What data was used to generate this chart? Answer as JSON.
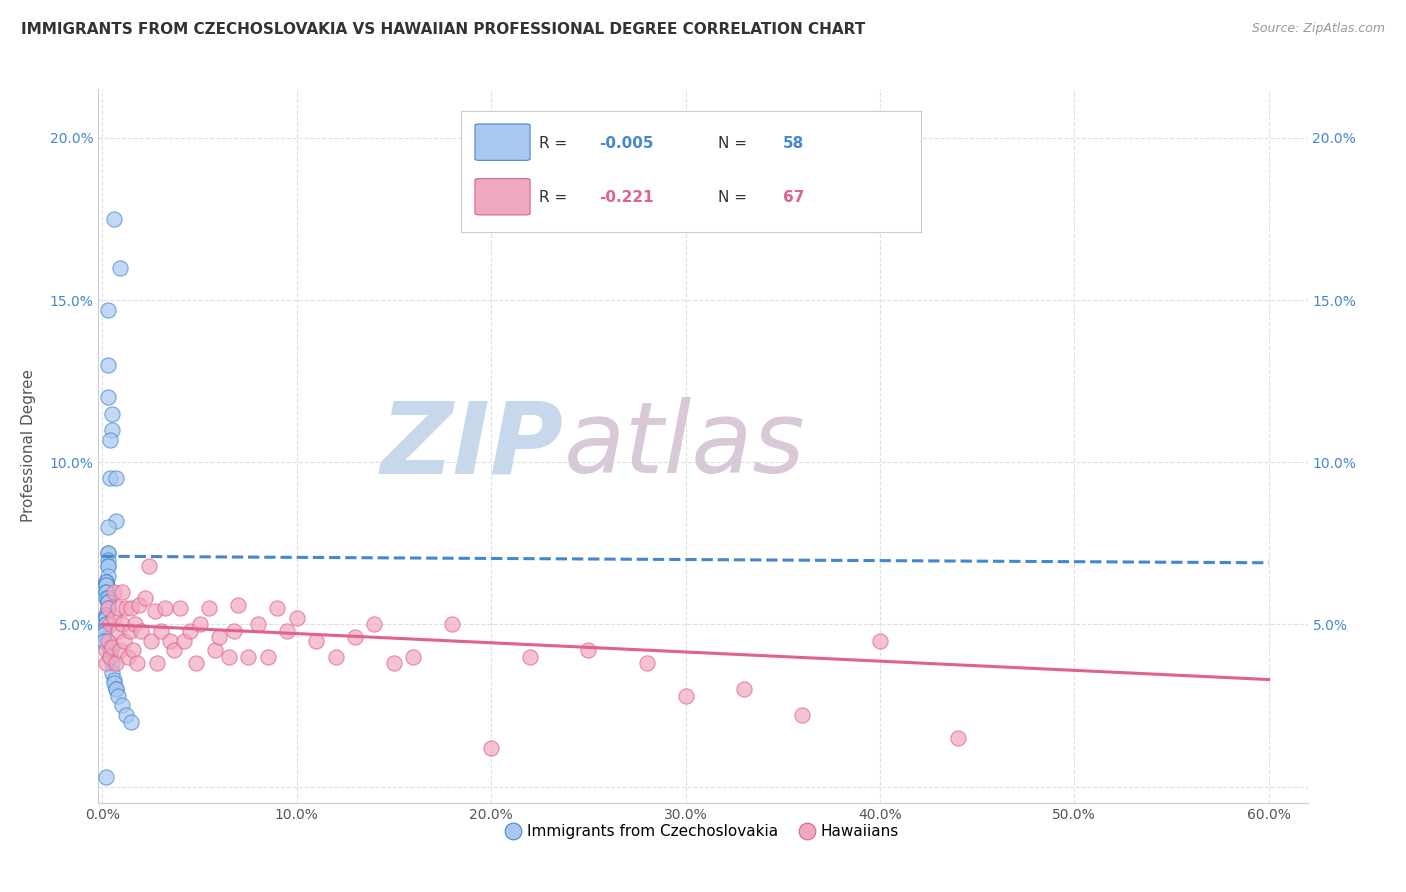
{
  "title": "IMMIGRANTS FROM CZECHOSLOVAKIA VS HAWAIIAN PROFESSIONAL DEGREE CORRELATION CHART",
  "source": "Source: ZipAtlas.com",
  "ylabel_label": "Professional Degree",
  "xlim": [
    -0.002,
    0.62
  ],
  "ylim": [
    -0.005,
    0.215
  ],
  "xticks": [
    0.0,
    0.1,
    0.2,
    0.3,
    0.4,
    0.5,
    0.6
  ],
  "xticklabels": [
    "0.0%",
    "10.0%",
    "20.0%",
    "30.0%",
    "40.0%",
    "50.0%",
    "60.0%"
  ],
  "yticks": [
    0.0,
    0.05,
    0.1,
    0.15,
    0.2
  ],
  "yticklabels_left": [
    "",
    "5.0%",
    "10.0%",
    "15.0%",
    "20.0%"
  ],
  "yticklabels_right": [
    "",
    "5.0%",
    "10.0%",
    "15.0%",
    "20.0%"
  ],
  "legend_R1": "-0.005",
  "legend_N1": "58",
  "legend_R2": "-0.221",
  "legend_N2": "67",
  "color_blue": "#a8c8f0",
  "color_pink": "#f0a8c0",
  "color_blue_dark": "#4488cc",
  "color_pink_dark": "#e06090",
  "color_blue_line": "#4488cc",
  "color_pink_line": "#e06090",
  "color_title": "#333333",
  "color_source": "#999999",
  "color_watermark_zip": "#c8d8ec",
  "color_watermark_atlas": "#d8c8d8",
  "background_color": "#ffffff",
  "grid_color": "#e0e0e0",
  "blue_x": [
    0.006,
    0.009,
    0.003,
    0.003,
    0.003,
    0.005,
    0.005,
    0.004,
    0.004,
    0.007,
    0.007,
    0.003,
    0.003,
    0.003,
    0.003,
    0.003,
    0.003,
    0.003,
    0.002,
    0.002,
    0.002,
    0.002,
    0.002,
    0.002,
    0.002,
    0.002,
    0.003,
    0.003,
    0.003,
    0.003,
    0.003,
    0.003,
    0.002,
    0.002,
    0.002,
    0.002,
    0.002,
    0.002,
    0.001,
    0.001,
    0.001,
    0.001,
    0.001,
    0.001,
    0.004,
    0.004,
    0.004,
    0.005,
    0.005,
    0.006,
    0.006,
    0.007,
    0.007,
    0.008,
    0.01,
    0.012,
    0.015,
    0.002
  ],
  "blue_y": [
    0.175,
    0.16,
    0.147,
    0.13,
    0.12,
    0.115,
    0.11,
    0.107,
    0.095,
    0.095,
    0.082,
    0.08,
    0.072,
    0.072,
    0.07,
    0.068,
    0.068,
    0.065,
    0.063,
    0.063,
    0.063,
    0.062,
    0.062,
    0.06,
    0.06,
    0.058,
    0.058,
    0.057,
    0.057,
    0.057,
    0.055,
    0.055,
    0.053,
    0.053,
    0.052,
    0.052,
    0.05,
    0.05,
    0.048,
    0.048,
    0.047,
    0.047,
    0.045,
    0.045,
    0.043,
    0.042,
    0.04,
    0.038,
    0.035,
    0.033,
    0.032,
    0.03,
    0.03,
    0.028,
    0.025,
    0.022,
    0.02,
    0.003
  ],
  "pink_x": [
    0.002,
    0.002,
    0.003,
    0.003,
    0.004,
    0.004,
    0.005,
    0.006,
    0.006,
    0.007,
    0.008,
    0.008,
    0.009,
    0.01,
    0.01,
    0.011,
    0.012,
    0.013,
    0.014,
    0.015,
    0.016,
    0.017,
    0.018,
    0.019,
    0.02,
    0.022,
    0.024,
    0.025,
    0.027,
    0.028,
    0.03,
    0.032,
    0.035,
    0.037,
    0.04,
    0.042,
    0.045,
    0.048,
    0.05,
    0.055,
    0.058,
    0.06,
    0.065,
    0.068,
    0.07,
    0.075,
    0.08,
    0.085,
    0.09,
    0.095,
    0.1,
    0.11,
    0.12,
    0.13,
    0.14,
    0.15,
    0.16,
    0.18,
    0.2,
    0.22,
    0.25,
    0.28,
    0.3,
    0.33,
    0.36,
    0.4,
    0.44
  ],
  "pink_y": [
    0.042,
    0.038,
    0.045,
    0.055,
    0.04,
    0.05,
    0.043,
    0.06,
    0.052,
    0.038,
    0.055,
    0.048,
    0.042,
    0.05,
    0.06,
    0.045,
    0.055,
    0.04,
    0.048,
    0.055,
    0.042,
    0.05,
    0.038,
    0.056,
    0.048,
    0.058,
    0.068,
    0.045,
    0.054,
    0.038,
    0.048,
    0.055,
    0.045,
    0.042,
    0.055,
    0.045,
    0.048,
    0.038,
    0.05,
    0.055,
    0.042,
    0.046,
    0.04,
    0.048,
    0.056,
    0.04,
    0.05,
    0.04,
    0.055,
    0.048,
    0.052,
    0.045,
    0.04,
    0.046,
    0.05,
    0.038,
    0.04,
    0.05,
    0.012,
    0.04,
    0.042,
    0.038,
    0.028,
    0.03,
    0.022,
    0.045,
    0.015
  ],
  "blue_trend_x": [
    0.0,
    0.6
  ],
  "blue_trend_y": [
    0.071,
    0.069
  ],
  "pink_trend_x": [
    0.0,
    0.6
  ],
  "pink_trend_y": [
    0.05,
    0.033
  ]
}
